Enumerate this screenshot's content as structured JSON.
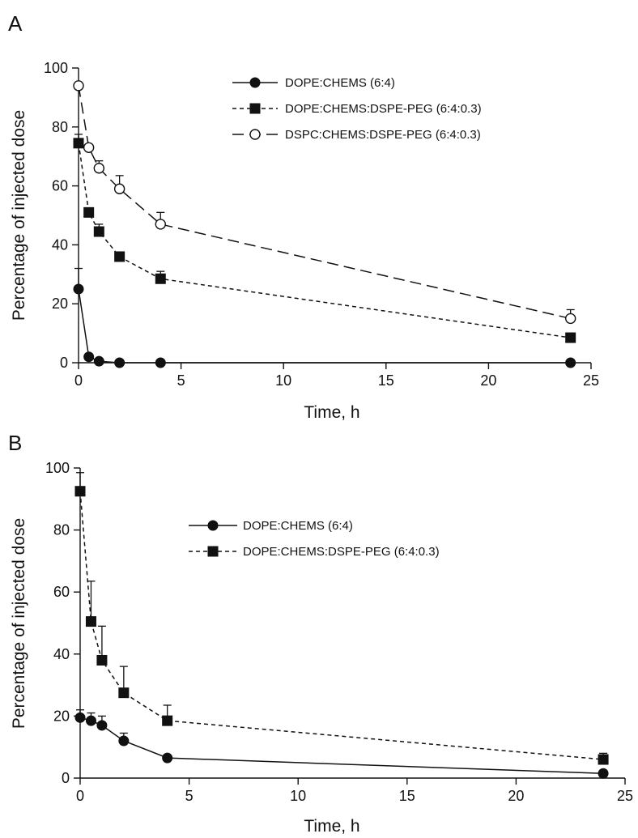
{
  "chart_data": [
    {
      "panel_label": "A",
      "type": "line",
      "xlabel": "Time, h",
      "ylabel": "Percentage of injected dose",
      "xlim": [
        0,
        25
      ],
      "ylim": [
        0,
        100
      ],
      "xticks": [
        0,
        5,
        10,
        15,
        20,
        25
      ],
      "yticks": [
        0,
        20,
        40,
        60,
        80,
        100
      ],
      "grid": false,
      "legend_position": "top-right",
      "series": [
        {
          "name": "DOPE:CHEMS (6:4)",
          "marker": "filled-circle",
          "line": "solid",
          "color": "#111111",
          "x": [
            0,
            0.5,
            1,
            2,
            4,
            24
          ],
          "y": [
            25,
            2,
            0.5,
            0,
            0,
            0
          ],
          "err": [
            7,
            0,
            0,
            0,
            0,
            0
          ]
        },
        {
          "name": "DOPE:CHEMS:DSPE-PEG (6:4:0.3)",
          "marker": "filled-square",
          "line": "short-dash",
          "color": "#111111",
          "x": [
            0,
            0.5,
            1,
            2,
            4,
            24
          ],
          "y": [
            74.5,
            51,
            44.5,
            36,
            28.5,
            8.5
          ],
          "err": [
            3,
            1.5,
            2.5,
            1.5,
            2.5,
            1.5
          ]
        },
        {
          "name": "DSPC:CHEMS:DSPE-PEG (6:4:0.3)",
          "marker": "open-circle",
          "line": "long-dash",
          "color": "#111111",
          "x": [
            0,
            0.5,
            1,
            2,
            4,
            24
          ],
          "y": [
            94,
            73,
            66,
            59,
            47,
            15
          ],
          "err": [
            0,
            0,
            2.5,
            4.5,
            4,
            3
          ]
        }
      ]
    },
    {
      "panel_label": "B",
      "type": "line",
      "xlabel": "Time, h",
      "ylabel": "Percentage of injected dose",
      "xlim": [
        0,
        25
      ],
      "ylim": [
        0,
        100
      ],
      "xticks": [
        0,
        5,
        10,
        15,
        20,
        25
      ],
      "yticks": [
        0,
        20,
        40,
        60,
        80,
        100
      ],
      "grid": false,
      "legend_position": "top-right",
      "series": [
        {
          "name": "DOPE:CHEMS (6:4)",
          "marker": "filled-circle",
          "line": "solid",
          "color": "#111111",
          "x": [
            0,
            0.5,
            1,
            2,
            4,
            24
          ],
          "y": [
            19.5,
            18.5,
            17,
            12,
            6.5,
            1.5
          ],
          "err": [
            2.5,
            2.5,
            3,
            2.5,
            0.5,
            0.5
          ]
        },
        {
          "name": "DOPE:CHEMS:DSPE-PEG (6:4:0.3)",
          "marker": "filled-square",
          "line": "short-dash",
          "color": "#111111",
          "x": [
            0,
            0.5,
            1,
            2,
            4,
            24
          ],
          "y": [
            92.5,
            50.5,
            38,
            27.5,
            18.5,
            6
          ],
          "err": [
            6,
            13,
            11,
            8.5,
            5,
            2
          ]
        }
      ]
    }
  ]
}
